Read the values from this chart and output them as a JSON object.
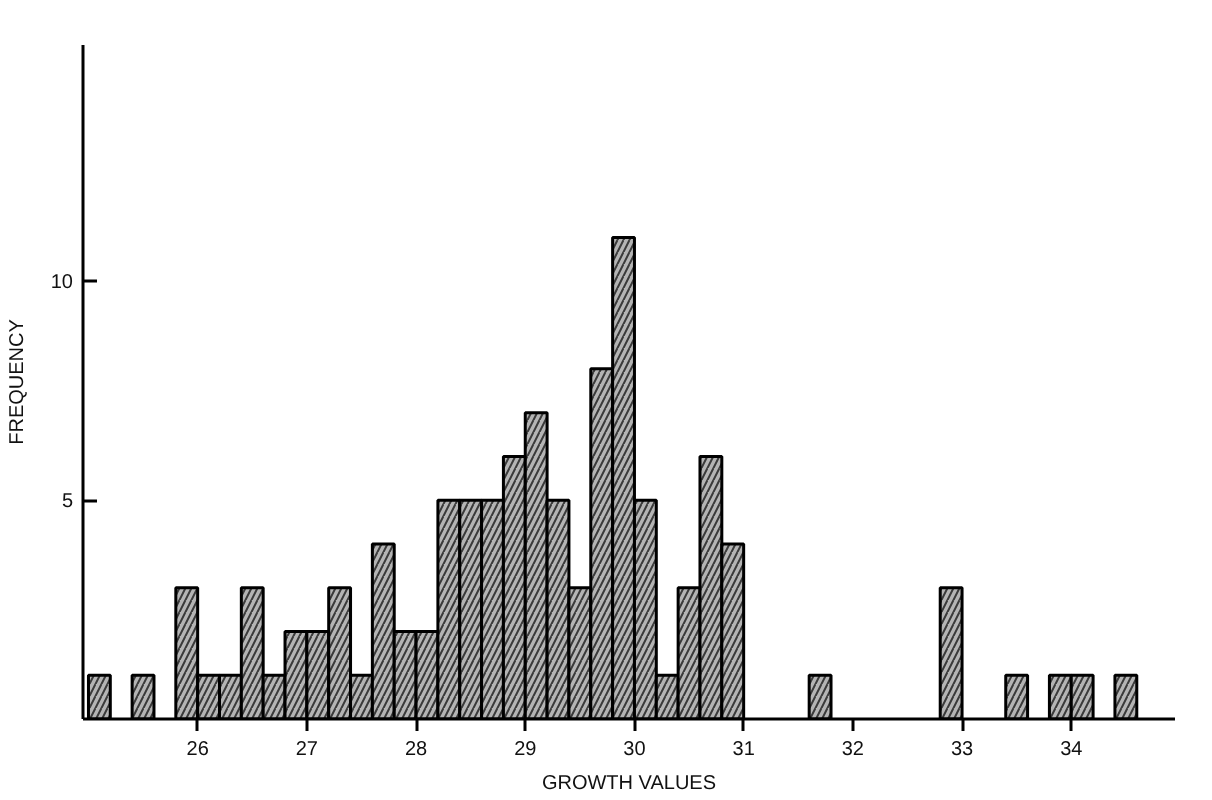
{
  "chart_data": {
    "type": "histogram",
    "xlabel": "GROWTH VALUES",
    "ylabel": "FREQUENCY",
    "bins": [
      25.0,
      25.2,
      25.4,
      25.6,
      25.8,
      26.0,
      26.2,
      26.4,
      26.6,
      26.8,
      27.0,
      27.2,
      27.4,
      27.6,
      27.8,
      28.0,
      28.2,
      28.4,
      28.6,
      28.8,
      29.0,
      29.2,
      29.4,
      29.6,
      29.8,
      30.0,
      30.2,
      30.4,
      30.6,
      30.8,
      31.0,
      31.2,
      31.4,
      31.6,
      31.8,
      32.0,
      32.2,
      32.4,
      32.6,
      32.8,
      33.0,
      33.2,
      33.4,
      33.6,
      33.8,
      34.0,
      34.2,
      34.4,
      34.6
    ],
    "values": [
      1,
      0,
      1,
      0,
      3,
      1,
      1,
      3,
      1,
      2,
      2,
      3,
      1,
      4,
      2,
      2,
      5,
      5,
      5,
      6,
      7,
      5,
      3,
      8,
      11,
      5,
      1,
      3,
      6,
      4,
      0,
      0,
      0,
      1,
      0,
      0,
      0,
      0,
      0,
      3,
      0,
      0,
      1,
      0,
      1,
      1,
      0,
      1
    ],
    "color": "#b4b4b4",
    "xlim": [
      24.95,
      34.95
    ],
    "ylim": [
      0,
      15.4
    ],
    "xticks": [
      26,
      27,
      28,
      29,
      30,
      31,
      32,
      33,
      34
    ],
    "yticks": [
      5,
      10
    ],
    "grid": false
  }
}
